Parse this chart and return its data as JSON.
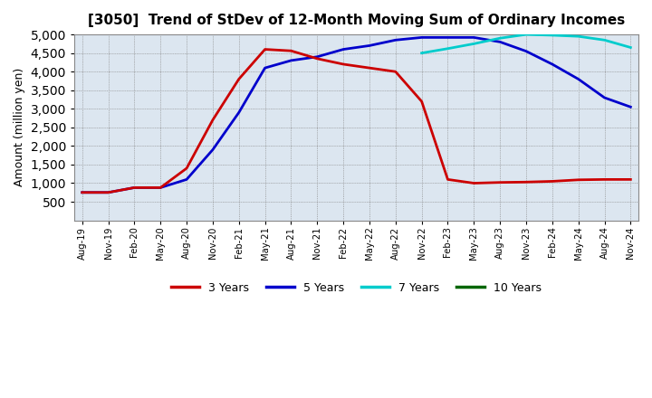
{
  "title": "[3050]  Trend of StDev of 12-Month Moving Sum of Ordinary Incomes",
  "ylabel": "Amount (million yen)",
  "ylim": [
    0,
    5000
  ],
  "yticks": [
    500,
    1000,
    1500,
    2000,
    2500,
    3000,
    3500,
    4000,
    4500,
    5000
  ],
  "background_color": "#ffffff",
  "plot_bg_color": "#dce6f0",
  "grid_color": "#aaaaaa",
  "line_colors": {
    "3y": "#cc0000",
    "5y": "#0000cc",
    "7y": "#00cccc",
    "10y": "#006600"
  },
  "legend_labels": [
    "3 Years",
    "5 Years",
    "7 Years",
    "10 Years"
  ],
  "x_labels": [
    "Aug-19",
    "Nov-19",
    "Feb-20",
    "May-20",
    "Aug-20",
    "Nov-20",
    "Feb-21",
    "May-21",
    "Aug-21",
    "Nov-21",
    "Feb-22",
    "May-22",
    "Aug-22",
    "Nov-22",
    "Feb-23",
    "May-23",
    "Aug-23",
    "Nov-23",
    "Feb-24",
    "May-24",
    "Aug-24",
    "Nov-24"
  ],
  "series_3y": [
    750,
    750,
    880,
    880,
    1400,
    2700,
    3800,
    4600,
    4560,
    4350,
    4200,
    4100,
    4000,
    3200,
    1100,
    1000,
    1020,
    1030,
    1050,
    1090,
    1100,
    1100
  ],
  "series_5y": [
    750,
    750,
    880,
    880,
    1100,
    1900,
    2900,
    4100,
    4300,
    4400,
    4600,
    4700,
    4850,
    4920,
    4920,
    4920,
    4800,
    4550,
    4200,
    3800,
    3300,
    3050
  ],
  "series_7y": [
    null,
    null,
    null,
    null,
    null,
    null,
    null,
    null,
    null,
    null,
    null,
    null,
    null,
    4500,
    4620,
    4750,
    4900,
    5000,
    4980,
    4950,
    4850,
    4650
  ],
  "series_10y": [
    null,
    null,
    null,
    null,
    null,
    null,
    null,
    null,
    null,
    null,
    null,
    null,
    null,
    null,
    null,
    null,
    null,
    null,
    null,
    null,
    null,
    null
  ]
}
